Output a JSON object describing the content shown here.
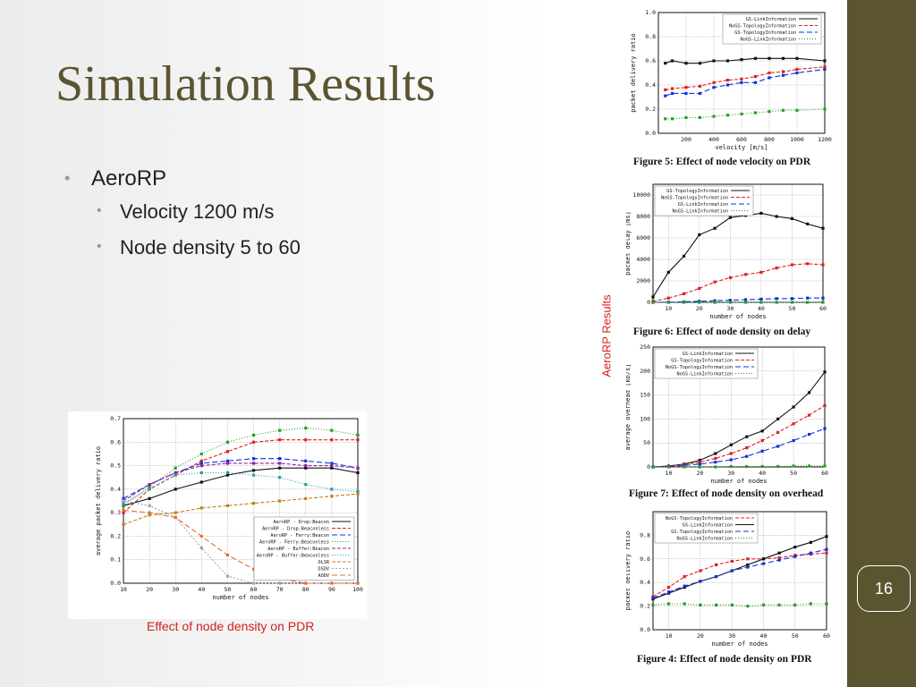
{
  "slide": {
    "title": "Simulation Results",
    "bullets": [
      {
        "text": "AeroRP",
        "level": 1
      },
      {
        "text": "Velocity 1200 m/s",
        "level": 2
      },
      {
        "text": "Node density 5 to 60",
        "level": 2
      }
    ],
    "page_number": "16",
    "side_caption": "AeroRP Results",
    "bottom_caption": "Effect of node density on PDR",
    "colors": {
      "title": "#5b5431",
      "sidebar": "#5b5431",
      "caption": "#d32020",
      "bullet_dot": "#8a9fae"
    }
  },
  "chart_data": [
    {
      "type": "line",
      "caption": "Figure 5: Effect of node velocity on PDR",
      "xlabel": "velocity [m/s]",
      "ylabel": "packet delivery ratio",
      "xlim": [
        0,
        1200
      ],
      "ylim": [
        0,
        1.0
      ],
      "xticks": [
        200,
        400,
        600,
        800,
        1000,
        1200
      ],
      "xtick_labels": [
        "200",
        "400",
        "600",
        "800",
        "1000",
        "1200"
      ],
      "yticks": [
        0,
        0.2,
        0.4,
        0.6,
        0.8,
        1.0
      ],
      "ytick_labels": [
        "0.0",
        "0.2",
        "0.4",
        "0.6",
        "0.8",
        "1.0"
      ],
      "legend": "top-right",
      "x": [
        50,
        100,
        200,
        300,
        400,
        500,
        600,
        700,
        800,
        900,
        1000,
        1200
      ],
      "series": [
        {
          "name": "GS-LinkInformation",
          "color": "#111111",
          "dash": "",
          "values": [
            0.58,
            0.6,
            0.58,
            0.58,
            0.6,
            0.6,
            0.61,
            0.62,
            0.62,
            0.62,
            0.62,
            0.6
          ]
        },
        {
          "name": "NoGS-TopologyInformation",
          "color": "#e02020",
          "dash": "4,2",
          "values": [
            0.36,
            0.37,
            0.38,
            0.39,
            0.42,
            0.44,
            0.45,
            0.47,
            0.5,
            0.51,
            0.53,
            0.55
          ]
        },
        {
          "name": "GS-TopologyInformation",
          "color": "#1030e0",
          "dash": "6,3",
          "values": [
            0.31,
            0.33,
            0.33,
            0.33,
            0.38,
            0.4,
            0.42,
            0.42,
            0.46,
            0.48,
            0.5,
            0.53
          ]
        },
        {
          "name": "NoGS-LinkInformation",
          "color": "#20a020",
          "dash": "1,2",
          "values": [
            0.12,
            0.12,
            0.13,
            0.13,
            0.14,
            0.15,
            0.16,
            0.17,
            0.18,
            0.19,
            0.19,
            0.2
          ]
        }
      ]
    },
    {
      "type": "line",
      "caption": "Figure 6: Effect of node density on delay",
      "xlabel": "number of nodes",
      "ylabel": "packet delay [ms]",
      "xlim": [
        5,
        60
      ],
      "ylim": [
        0,
        11000
      ],
      "xticks": [
        10,
        20,
        30,
        40,
        50,
        60
      ],
      "xtick_labels": [
        "10",
        "20",
        "30",
        "40",
        "50",
        "60"
      ],
      "yticks": [
        0,
        2000,
        4000,
        6000,
        8000,
        10000
      ],
      "ytick_labels": [
        "0",
        "2000",
        "4000",
        "6000",
        "8000",
        "10000"
      ],
      "legend": "top-left",
      "x": [
        5,
        10,
        15,
        20,
        25,
        30,
        35,
        40,
        45,
        50,
        55,
        60
      ],
      "series": [
        {
          "name": "GS-TopologyInformation",
          "color": "#111111",
          "dash": "",
          "values": [
            500,
            2800,
            4300,
            6300,
            6900,
            7900,
            8100,
            8300,
            8000,
            7800,
            7300,
            6900
          ]
        },
        {
          "name": "NoGS-TopologyInformation",
          "color": "#e02020",
          "dash": "4,2",
          "values": [
            100,
            400,
            800,
            1300,
            1900,
            2300,
            2600,
            2800,
            3200,
            3500,
            3600,
            3500
          ]
        },
        {
          "name": "GS-LinkInformation",
          "color": "#1030e0",
          "dash": "6,3",
          "values": [
            0,
            20,
            50,
            100,
            150,
            200,
            250,
            300,
            350,
            350,
            400,
            400
          ]
        },
        {
          "name": "NoGS-LinkInformation",
          "color": "#20a020",
          "dash": "1,2",
          "values": [
            0,
            0,
            0,
            0,
            0,
            0,
            0,
            0,
            0,
            0,
            0,
            0
          ]
        }
      ]
    },
    {
      "type": "line",
      "caption": "Figure 7: Effect of node density on overhead",
      "xlabel": "number of nodes",
      "ylabel": "average overhead [kb/s]",
      "xlim": [
        5,
        60
      ],
      "ylim": [
        0,
        250
      ],
      "xticks": [
        10,
        20,
        30,
        40,
        50,
        60
      ],
      "xtick_labels": [
        "10",
        "20",
        "30",
        "40",
        "50",
        "60"
      ],
      "yticks": [
        0,
        50,
        100,
        150,
        200,
        250
      ],
      "ytick_labels": [
        "0",
        "50",
        "100",
        "150",
        "200",
        "250"
      ],
      "legend": "top-left",
      "x": [
        5,
        10,
        15,
        20,
        25,
        30,
        35,
        40,
        45,
        50,
        55,
        60
      ],
      "series": [
        {
          "name": "GS-LinkInformation",
          "color": "#111111",
          "dash": "",
          "values": [
            0,
            2,
            6,
            14,
            28,
            46,
            63,
            75,
            100,
            125,
            155,
            198
          ]
        },
        {
          "name": "GS-TopologyInformation",
          "color": "#e02020",
          "dash": "4,2",
          "values": [
            0,
            2,
            5,
            10,
            18,
            28,
            40,
            55,
            72,
            90,
            108,
            128
          ]
        },
        {
          "name": "NoGS-TopologyInformation",
          "color": "#1030e0",
          "dash": "6,3",
          "values": [
            0,
            1,
            3,
            6,
            10,
            15,
            22,
            33,
            43,
            55,
            68,
            80
          ]
        },
        {
          "name": "NoGS-LinkInformation",
          "color": "#20a020",
          "dash": "1,2",
          "values": [
            0,
            0,
            0,
            0,
            0,
            1,
            1,
            1,
            1,
            2,
            2,
            2
          ]
        }
      ]
    },
    {
      "type": "line",
      "caption": "Figure 4: Effect of node density on PDR",
      "xlabel": "number of nodes",
      "ylabel": "packet delivery ratio",
      "xlim": [
        5,
        60
      ],
      "ylim": [
        0,
        1.0
      ],
      "xticks": [
        10,
        20,
        30,
        40,
        50,
        60
      ],
      "xtick_labels": [
        "10",
        "20",
        "30",
        "40",
        "50",
        "60"
      ],
      "yticks": [
        0,
        0.2,
        0.4,
        0.6,
        0.8
      ],
      "ytick_labels": [
        "0.0",
        "0.2",
        "0.4",
        "0.6",
        "0.8"
      ],
      "legend": "top-left",
      "x": [
        5,
        10,
        15,
        20,
        25,
        30,
        35,
        40,
        45,
        50,
        55,
        60
      ],
      "series": [
        {
          "name": "NoGS-TopologyInformation",
          "color": "#e02020",
          "dash": "4,2",
          "values": [
            0.28,
            0.36,
            0.45,
            0.5,
            0.55,
            0.58,
            0.6,
            0.6,
            0.61,
            0.63,
            0.64,
            0.65
          ]
        },
        {
          "name": "GS-LinkInformation",
          "color": "#111111",
          "dash": "",
          "values": [
            0.26,
            0.31,
            0.36,
            0.41,
            0.45,
            0.5,
            0.55,
            0.6,
            0.65,
            0.7,
            0.74,
            0.79
          ]
        },
        {
          "name": "GS-TopologyInformation",
          "color": "#1030e0",
          "dash": "6,3",
          "values": [
            0.27,
            0.32,
            0.37,
            0.41,
            0.45,
            0.5,
            0.53,
            0.56,
            0.59,
            0.62,
            0.65,
            0.68
          ]
        },
        {
          "name": "NoGS-LinkInformation",
          "color": "#20a020",
          "dash": "1,2",
          "values": [
            0.21,
            0.22,
            0.22,
            0.21,
            0.21,
            0.21,
            0.2,
            0.21,
            0.21,
            0.21,
            0.22,
            0.22
          ]
        }
      ]
    },
    {
      "type": "line",
      "xlabel": "number of nodes",
      "ylabel": "average packet delivery ratio",
      "xlim": [
        10,
        100
      ],
      "ylim": [
        0,
        0.7
      ],
      "xticks": [
        10,
        20,
        30,
        40,
        50,
        60,
        70,
        80,
        90,
        100
      ],
      "xtick_labels": [
        "10",
        "20",
        "30",
        "40",
        "50",
        "60",
        "70",
        "80",
        "90",
        "100"
      ],
      "yticks": [
        0,
        0.1,
        0.2,
        0.3,
        0.4,
        0.5,
        0.6,
        0.7
      ],
      "ytick_labels": [
        "0.0",
        "0.1",
        "0.2",
        "0.3",
        "0.4",
        "0.5",
        "0.6",
        "0.7"
      ],
      "legend": "bottom-right",
      "x": [
        10,
        20,
        30,
        40,
        50,
        60,
        70,
        80,
        90,
        100
      ],
      "series": [
        {
          "name": "AeroRP - Drop:Beacon",
          "color": "#111111",
          "dash": "",
          "values": [
            0.33,
            0.36,
            0.4,
            0.43,
            0.46,
            0.48,
            0.49,
            0.49,
            0.49,
            0.47
          ]
        },
        {
          "name": "AeroRP - Drop:Beaconless",
          "color": "#e02020",
          "dash": "4,2",
          "values": [
            0.3,
            0.4,
            0.46,
            0.52,
            0.56,
            0.6,
            0.61,
            0.61,
            0.61,
            0.61
          ]
        },
        {
          "name": "AeroRP - Ferry:Beacon",
          "color": "#1030e0",
          "dash": "6,3",
          "values": [
            0.36,
            0.42,
            0.47,
            0.51,
            0.52,
            0.53,
            0.53,
            0.52,
            0.51,
            0.49
          ]
        },
        {
          "name": "AeroRP - Ferry:Beaconless",
          "color": "#20a020",
          "dash": "1,2",
          "values": [
            0.33,
            0.41,
            0.49,
            0.55,
            0.6,
            0.63,
            0.65,
            0.66,
            0.65,
            0.63
          ]
        },
        {
          "name": "AeroRP - Buffer:Beacon",
          "color": "#9020a0",
          "dash": "4,2",
          "values": [
            0.35,
            0.42,
            0.47,
            0.5,
            0.51,
            0.51,
            0.51,
            0.5,
            0.5,
            0.49
          ]
        },
        {
          "name": "AeroRP - Buffer:Beaconless",
          "color": "#20a0a0",
          "dash": "1,2",
          "values": [
            0.34,
            0.4,
            0.46,
            0.47,
            0.47,
            0.46,
            0.45,
            0.42,
            0.4,
            0.39
          ]
        },
        {
          "name": "OLSR",
          "color": "#c08020",
          "dash": "4,2",
          "values": [
            0.25,
            0.29,
            0.3,
            0.32,
            0.33,
            0.34,
            0.35,
            0.36,
            0.37,
            0.38
          ]
        },
        {
          "name": "DSDV",
          "color": "#a0a0c0",
          "dash": "2,2",
          "values": [
            0.35,
            0.33,
            0.28,
            0.15,
            0.03,
            0.0,
            0.0,
            0.0,
            0.0,
            0.0
          ]
        },
        {
          "name": "AODV",
          "color": "#e07030",
          "dash": "6,3",
          "values": [
            0.31,
            0.3,
            0.28,
            0.2,
            0.12,
            0.06,
            0.02,
            0.0,
            0.0,
            0.0
          ]
        }
      ]
    }
  ]
}
